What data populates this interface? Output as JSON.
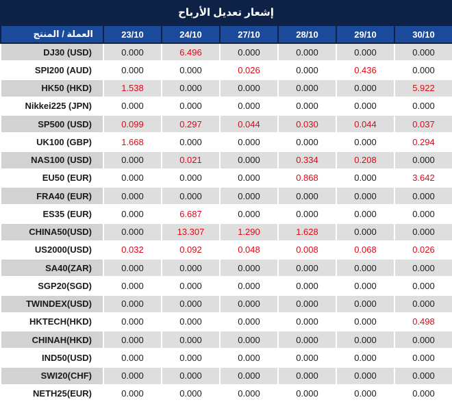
{
  "title": "إشعار تعديل الأرباح",
  "columns": [
    "العملة / المنتج",
    "23/10",
    "24/10",
    "27/10",
    "28/10",
    "29/10",
    "30/10"
  ],
  "rows": [
    {
      "label": "DJ30 (USD)",
      "values": [
        "0.000",
        "6.496",
        "0.000",
        "0.000",
        "0.000",
        "0.000"
      ]
    },
    {
      "label": "SPI200 (AUD)",
      "values": [
        "0.000",
        "0.000",
        "0.026",
        "0.000",
        "0.436",
        "0.000"
      ]
    },
    {
      "label": "HK50 (HKD)",
      "values": [
        "1.538",
        "0.000",
        "0.000",
        "0.000",
        "0.000",
        "5.922"
      ]
    },
    {
      "label": "Nikkei225 (JPN)",
      "values": [
        "0.000",
        "0.000",
        "0.000",
        "0.000",
        "0.000",
        "0.000"
      ]
    },
    {
      "label": "SP500 (USD)",
      "values": [
        "0.099",
        "0.297",
        "0.044",
        "0.030",
        "0.044",
        "0.037"
      ]
    },
    {
      "label": "UK100 (GBP)",
      "values": [
        "1.668",
        "0.000",
        "0.000",
        "0.000",
        "0.000",
        "0.294"
      ]
    },
    {
      "label": "NAS100 (USD)",
      "values": [
        "0.000",
        "0.021",
        "0.000",
        "0.334",
        "0.208",
        "0.000"
      ]
    },
    {
      "label": "EU50 (EUR)",
      "values": [
        "0.000",
        "0.000",
        "0.000",
        "0.868",
        "0.000",
        "3.642"
      ]
    },
    {
      "label": "FRA40 (EUR)",
      "values": [
        "0.000",
        "0.000",
        "0.000",
        "0.000",
        "0.000",
        "0.000"
      ]
    },
    {
      "label": "ES35 (EUR)",
      "values": [
        "0.000",
        "6.687",
        "0.000",
        "0.000",
        "0.000",
        "0.000"
      ]
    },
    {
      "label": "CHINA50(USD)",
      "values": [
        "0.000",
        "13.307",
        "1.290",
        "1.628",
        "0.000",
        "0.000"
      ]
    },
    {
      "label": "US2000(USD)",
      "values": [
        "0.032",
        "0.092",
        "0.048",
        "0.008",
        "0.068",
        "0.026"
      ]
    },
    {
      "label": "SA40(ZAR)",
      "values": [
        "0.000",
        "0.000",
        "0.000",
        "0.000",
        "0.000",
        "0.000"
      ]
    },
    {
      "label": "SGP20(SGD)",
      "values": [
        "0.000",
        "0.000",
        "0.000",
        "0.000",
        "0.000",
        "0.000"
      ]
    },
    {
      "label": "TWINDEX(USD)",
      "values": [
        "0.000",
        "0.000",
        "0.000",
        "0.000",
        "0.000",
        "0.000"
      ]
    },
    {
      "label": "HKTECH(HKD)",
      "values": [
        "0.000",
        "0.000",
        "0.000",
        "0.000",
        "0.000",
        "0.498"
      ]
    },
    {
      "label": "CHINAH(HKD)",
      "values": [
        "0.000",
        "0.000",
        "0.000",
        "0.000",
        "0.000",
        "0.000"
      ]
    },
    {
      "label": "IND50(USD)",
      "values": [
        "0.000",
        "0.000",
        "0.000",
        "0.000",
        "0.000",
        "0.000"
      ]
    },
    {
      "label": "SWI20(CHF)",
      "values": [
        "0.000",
        "0.000",
        "0.000",
        "0.000",
        "0.000",
        "0.000"
      ]
    },
    {
      "label": "NETH25(EUR)",
      "values": [
        "0.000",
        "0.000",
        "0.000",
        "0.000",
        "0.000",
        "0.000"
      ]
    }
  ],
  "colors": {
    "title_bg": "#0e2247",
    "header_bg": "#1a4a9c",
    "row_gray": "#dedede",
    "label_gray": "#d2d2d2",
    "value_red": "#e30613",
    "value_black": "#1a1a1a"
  }
}
